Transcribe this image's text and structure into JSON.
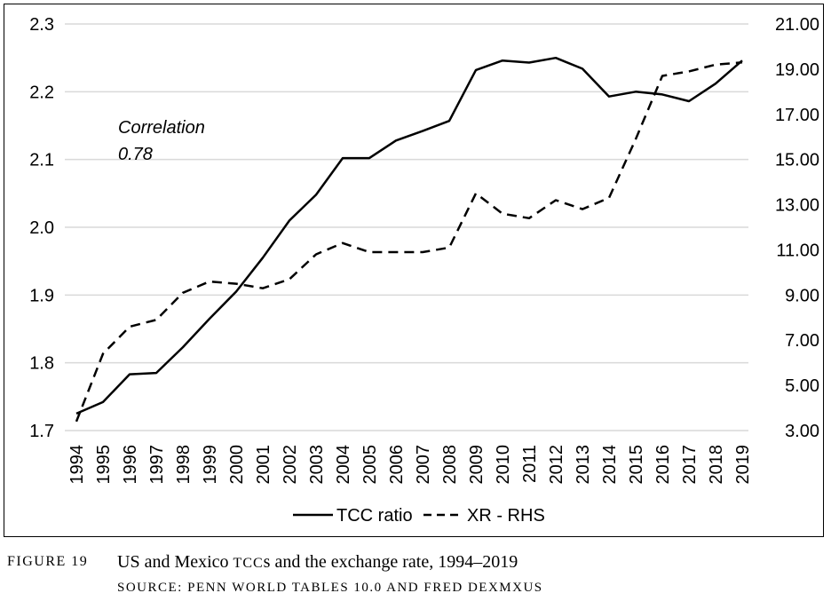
{
  "chart_data": {
    "type": "line",
    "x": [
      "1994",
      "1995",
      "1996",
      "1997",
      "1998",
      "1999",
      "2000",
      "2001",
      "2002",
      "2003",
      "2004",
      "2005",
      "2006",
      "2007",
      "2008",
      "2009",
      "2010",
      "2011",
      "2012",
      "2013",
      "2014",
      "2015",
      "2016",
      "2017",
      "2018",
      "2019"
    ],
    "series": [
      {
        "name": "TCC ratio",
        "axis": "left",
        "line_style": "solid",
        "values": [
          1.725,
          1.742,
          1.783,
          1.785,
          1.823,
          1.865,
          1.905,
          1.955,
          2.01,
          2.048,
          2.102,
          2.102,
          2.128,
          2.142,
          2.157,
          2.232,
          2.246,
          2.243,
          2.25,
          2.234,
          2.193,
          2.2,
          2.196,
          2.186,
          2.212,
          2.246
        ]
      },
      {
        "name": "XR - RHS",
        "axis": "right",
        "line_style": "dashed",
        "values": [
          3.4,
          6.4,
          7.6,
          7.9,
          9.1,
          9.6,
          9.5,
          9.3,
          9.7,
          10.8,
          11.3,
          10.9,
          10.9,
          10.9,
          11.1,
          13.5,
          12.6,
          12.4,
          13.2,
          12.8,
          13.3,
          15.9,
          18.7,
          18.9,
          19.2,
          19.3
        ]
      }
    ],
    "left_axis": {
      "min": 1.7,
      "max": 2.3,
      "ticks": [
        "1.7",
        "1.8",
        "1.9",
        "2.0",
        "2.1",
        "2.2",
        "2.3"
      ]
    },
    "right_axis": {
      "min": 3.0,
      "max": 21.0,
      "ticks": [
        "3.00",
        "5.00",
        "7.00",
        "9.00",
        "11.00",
        "13.00",
        "15.00",
        "17.00",
        "19.00",
        "21.00"
      ]
    },
    "grid": "horizontal",
    "legend_position": "bottom",
    "annotation": [
      "Correlation",
      "0.78"
    ],
    "colors": {
      "line": "#000000",
      "grid": "#d9d9d9"
    }
  },
  "caption": {
    "figure_label": "FIGURE 19",
    "title_pre": "US and Mexico ",
    "title_sc": "TCC",
    "title_post": "s and the exchange rate, 1994–2019",
    "source": "SOURCE: PENN WORLD TABLES 10.0 AND FRED DEXMXUS"
  }
}
